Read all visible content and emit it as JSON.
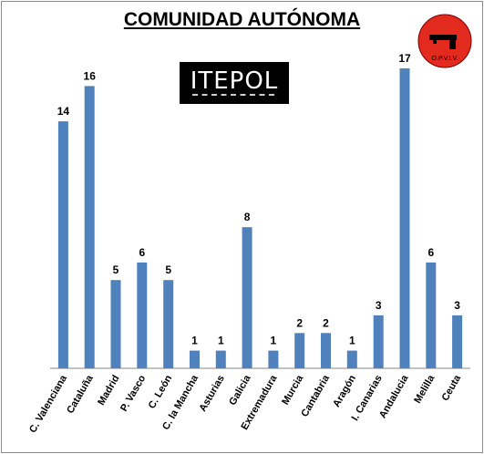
{
  "logos": {
    "brand_left": "ITEPOL",
    "brand_right": "O.P.V.I.V."
  },
  "chart_data": {
    "type": "bar",
    "title": "COMUNIDAD AUTÓNOMA",
    "categories": [
      "C. Valenciana",
      "Cataluña",
      "Madrid",
      "P. Vasco",
      "C. León",
      "C. la Mancha",
      "Asturias",
      "Galicia",
      "Extremadura",
      "Murcia",
      "Cantabria",
      "Aragón",
      "I. Canarias",
      "Andalucia",
      "Melilla",
      "Ceuta"
    ],
    "values": [
      14,
      16,
      5,
      6,
      5,
      1,
      1,
      8,
      1,
      2,
      2,
      1,
      3,
      17,
      6,
      3
    ],
    "ylim": [
      0,
      17
    ],
    "grid": false,
    "data_labels": true,
    "bar_color": "#4f81bd"
  }
}
